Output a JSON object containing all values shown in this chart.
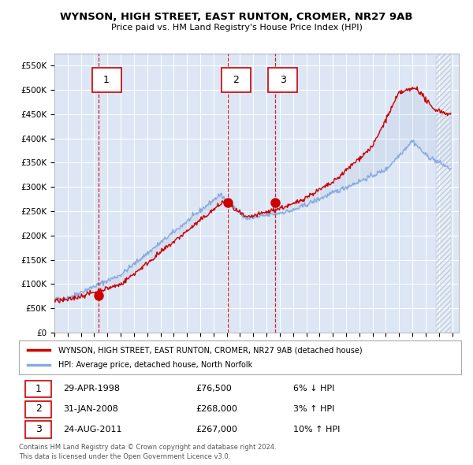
{
  "title": "WYNSON, HIGH STREET, EAST RUNTON, CROMER, NR27 9AB",
  "subtitle": "Price paid vs. HM Land Registry's House Price Index (HPI)",
  "ylim": [
    0,
    575000
  ],
  "yticks": [
    0,
    50000,
    100000,
    150000,
    200000,
    250000,
    300000,
    350000,
    400000,
    450000,
    500000,
    550000
  ],
  "ytick_labels": [
    "£0",
    "£50K",
    "£100K",
    "£150K",
    "£200K",
    "£250K",
    "£300K",
    "£350K",
    "£400K",
    "£450K",
    "£500K",
    "£550K"
  ],
  "background_color": "#dce6f5",
  "grid_color": "#ffffff",
  "sale_line_color": "#cc0000",
  "hpi_line_color": "#88aadd",
  "transactions": [
    {
      "label": "1",
      "date": "29-APR-1998",
      "price": 76500,
      "pct": "6%",
      "direction": "↓",
      "x_year": 1998.33
    },
    {
      "label": "2",
      "date": "31-JAN-2008",
      "price": 268000,
      "pct": "3%",
      "direction": "↑",
      "x_year": 2008.08
    },
    {
      "label": "3",
      "date": "24-AUG-2011",
      "price": 267000,
      "pct": "10%",
      "direction": "↑",
      "x_year": 2011.64
    }
  ],
  "legend_sale_label": "WYNSON, HIGH STREET, EAST RUNTON, CROMER, NR27 9AB (detached house)",
  "legend_hpi_label": "HPI: Average price, detached house, North Norfolk",
  "footnote1": "Contains HM Land Registry data © Crown copyright and database right 2024.",
  "footnote2": "This data is licensed under the Open Government Licence v3.0.",
  "xmin": 1995,
  "xmax": 2025.5
}
